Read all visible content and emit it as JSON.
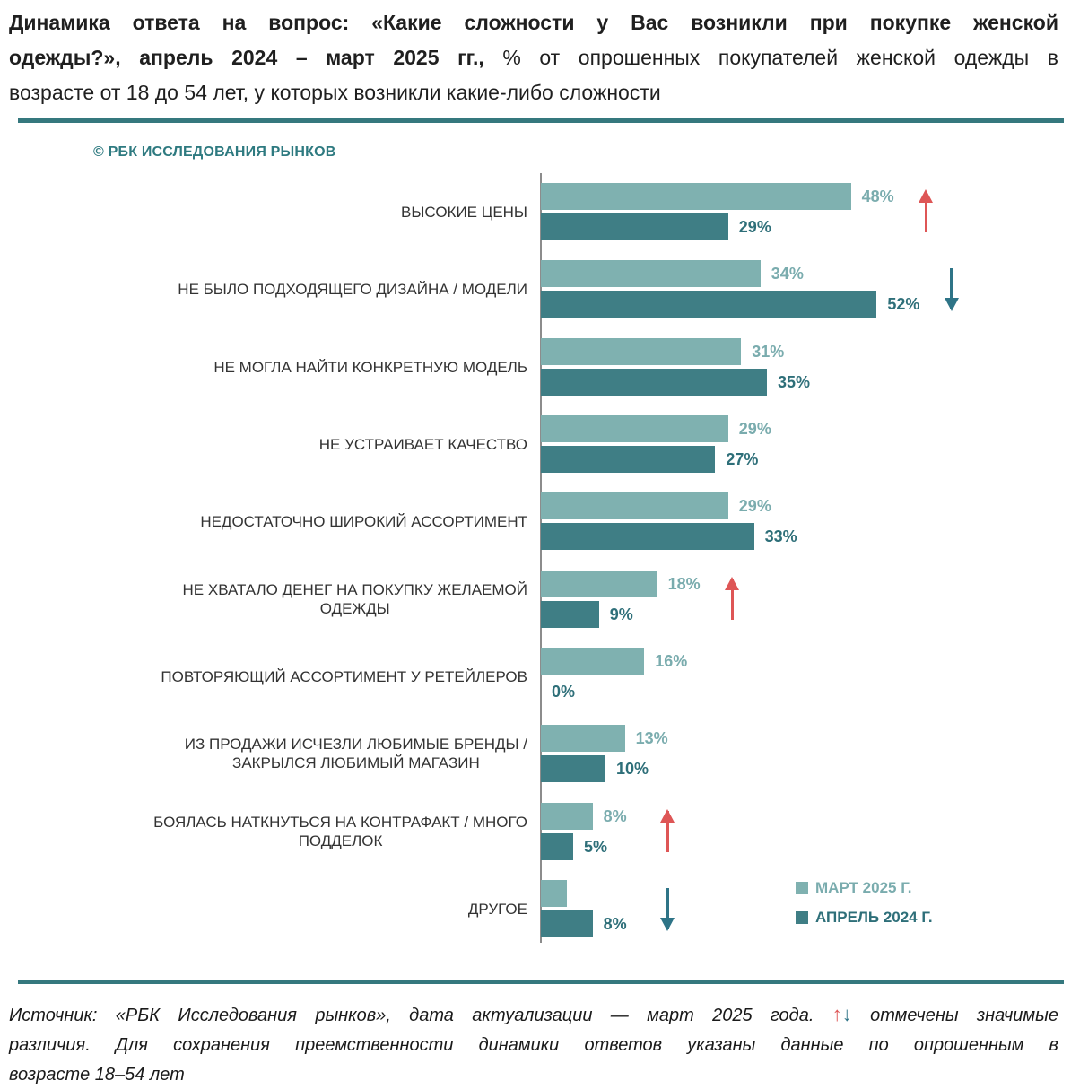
{
  "title": {
    "line1_bold": "Динамика ответа на вопрос: «Какие сложности у Вас возникли при покупке женской",
    "line2_bold": "одежды?», апрель 2024 – март 2025 гг.,",
    "line2_regular": " % от опрошенных покупателей женской одежды в",
    "line3_regular": "возрасте от 18 до 54 лет, у которых возникли какие-либо сложности"
  },
  "copyright": "© РБК ИССЛЕДОВАНИЯ РЫНКОВ",
  "legend": {
    "items": [
      {
        "label": "МАРТ 2025 Г.",
        "color": "#7FB1B0"
      },
      {
        "label": "АПРЕЛЬ 2024 Г.",
        "color": "#3F7E85"
      }
    ]
  },
  "chart_data": {
    "type": "bar",
    "orientation": "horizontal",
    "unit": "%",
    "xlim": [
      0,
      55
    ],
    "grid": false,
    "legend_position": "bottom-right",
    "series_names": [
      "МАРТ 2025 Г.",
      "АПРЕЛЬ 2024 Г."
    ],
    "categories": [
      "ВЫСОКИЕ ЦЕНЫ",
      "НЕ БЫЛО ПОДХОДЯЩЕГО ДИЗАЙНА / МОДЕЛИ",
      "НЕ МОГЛА НАЙТИ КОНКРЕТНУЮ МОДЕЛЬ",
      "НЕ УСТРАИВАЕТ КАЧЕСТВО",
      "НЕДОСТАТОЧНО ШИРОКИЙ АССОРТИМЕНТ",
      "НЕ ХВАТАЛО ДЕНЕГ НА ПОКУПКУ ЖЕЛАЕМОЙ ОДЕЖДЫ",
      "ПОВТОРЯЮЩИЙ АССОРТИМЕНТ У РЕТЕЙЛЕРОВ",
      "ИЗ ПРОДАЖИ ИСЧЕЗЛИ ЛЮБИМЫЕ БРЕНДЫ / ЗАКРЫЛСЯ ЛЮБИМЫЙ МАГАЗИН",
      "БОЯЛАСЬ НАТКНУТЬСЯ НА КОНТРАФАКТ / МНОГО ПОДДЕЛОК",
      "ДРУГОЕ"
    ],
    "rows": [
      {
        "label": "ВЫСОКИЕ ЦЕНЫ",
        "march2025": 48,
        "march2025_label": "48%",
        "april2024": 29,
        "april2024_label": "29%",
        "arrow": "up"
      },
      {
        "label": "НЕ БЫЛО ПОДХОДЯЩЕГО ДИЗАЙНА / МОДЕЛИ",
        "march2025": 34,
        "march2025_label": "34%",
        "april2024": 52,
        "april2024_label": "52%",
        "arrow": "down"
      },
      {
        "label": "НЕ МОГЛА НАЙТИ КОНКРЕТНУЮ МОДЕЛЬ",
        "march2025": 31,
        "march2025_label": "31%",
        "april2024": 35,
        "april2024_label": "35%",
        "arrow": null
      },
      {
        "label": "НЕ УСТРАИВАЕТ КАЧЕСТВО",
        "march2025": 29,
        "march2025_label": "29%",
        "april2024": 27,
        "april2024_label": "27%",
        "arrow": null
      },
      {
        "label": "НЕДОСТАТОЧНО ШИРОКИЙ АССОРТИМЕНТ",
        "march2025": 29,
        "march2025_label": "29%",
        "april2024": 33,
        "april2024_label": "33%",
        "arrow": null
      },
      {
        "label": "НЕ ХВАТАЛО ДЕНЕГ НА ПОКУПКУ ЖЕЛАЕМОЙ\nОДЕЖДЫ",
        "march2025": 18,
        "march2025_label": "18%",
        "april2024": 9,
        "april2024_label": "9%",
        "arrow": "up"
      },
      {
        "label": "ПОВТОРЯЮЩИЙ АССОРТИМЕНТ У РЕТЕЙЛЕРОВ",
        "march2025": 16,
        "march2025_label": "16%",
        "april2024": 0,
        "april2024_label": "0%",
        "arrow": null
      },
      {
        "label": "ИЗ ПРОДАЖИ ИСЧЕЗЛИ ЛЮБИМЫЕ БРЕНДЫ /\nЗАКРЫЛСЯ ЛЮБИМЫЙ МАГАЗИН",
        "march2025": 13,
        "march2025_label": "13%",
        "april2024": 10,
        "april2024_label": "10%",
        "arrow": null
      },
      {
        "label": "БОЯЛАСЬ НАТКНУТЬСЯ НА КОНТРАФАКТ / МНОГО\nПОДДЕЛОК",
        "march2025": 8,
        "march2025_label": "8%",
        "april2024": 5,
        "april2024_label": "5%",
        "arrow": "up"
      },
      {
        "label": "ДРУГОЕ",
        "march2025": 4,
        "march2025_label": "",
        "april2024": 8,
        "april2024_label": "8%",
        "arrow": "down"
      }
    ]
  },
  "footer": {
    "line1_part1": "Источник: «РБК Исследования рынков», дата актуализации — март 2025 года. ",
    "up_arrow": "↑",
    "down_arrow": "↓",
    "line1_part2": " отмечены значимые",
    "line2": "различия. Для сохранения преемственности динамики ответов указаны данные по опрошенным в",
    "line3": "возрасте 18–54 лет"
  },
  "colors": {
    "bar-light": "#7FB1B0",
    "bar-dark": "#3F7E85",
    "value-light": "#7AACAE",
    "value-dark": "#2E6F79",
    "arrow-red": "#DE5656",
    "arrow-teal": "#2E7487",
    "divider": "#35787E",
    "accent-teal": "#2E7A80",
    "axis": "#8C8C8C"
  }
}
